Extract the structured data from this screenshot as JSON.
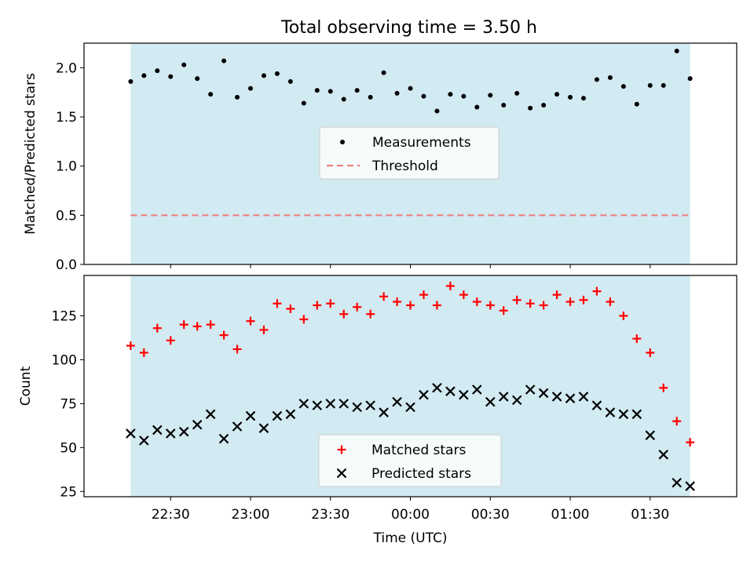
{
  "title": "Total observing time = 3.50 h",
  "colors": {
    "band": "#add8e6",
    "measurement": "#000000",
    "threshold": "#f08080",
    "matched": "#ff0000",
    "predicted": "#000000"
  },
  "chart_data": [
    {
      "type": "scatter",
      "ylabel": "Matched/Predicted stars",
      "ylim": [
        0,
        2.25
      ],
      "yticks": [
        "0.0",
        "0.5",
        "1.0",
        "1.5",
        "2.0"
      ],
      "legend_placement": "center",
      "observation_window": {
        "start": "22:15",
        "end": "01:45"
      },
      "series": [
        {
          "name": "Measurements",
          "marker": "dot",
          "x": [
            "22:15",
            "22:20",
            "22:25",
            "22:30",
            "22:35",
            "22:40",
            "22:45",
            "22:50",
            "22:55",
            "23:00",
            "23:05",
            "23:10",
            "23:15",
            "23:20",
            "23:25",
            "23:30",
            "23:35",
            "23:40",
            "23:45",
            "23:50",
            "23:55",
            "00:00",
            "00:05",
            "00:10",
            "00:15",
            "00:20",
            "00:25",
            "00:30",
            "00:35",
            "00:40",
            "00:45",
            "00:50",
            "00:55",
            "01:00",
            "01:05",
            "01:10",
            "01:15",
            "01:20",
            "01:25",
            "01:30",
            "01:35",
            "01:40",
            "01:45"
          ],
          "y": [
            1.86,
            1.92,
            1.97,
            1.91,
            2.03,
            1.89,
            1.73,
            2.07,
            1.7,
            1.79,
            1.92,
            1.94,
            1.86,
            1.64,
            1.77,
            1.76,
            1.68,
            1.77,
            1.7,
            1.95,
            1.74,
            1.79,
            1.71,
            1.56,
            1.73,
            1.71,
            1.6,
            1.72,
            1.62,
            1.74,
            1.59,
            1.62,
            1.73,
            1.7,
            1.69,
            1.88,
            1.9,
            1.81,
            1.63,
            1.82,
            1.82,
            2.17,
            1.89
          ]
        }
      ],
      "threshold": {
        "name": "Threshold",
        "value": 0.5,
        "style": "dashed"
      }
    },
    {
      "type": "scatter",
      "ylabel": "Count",
      "xlabel": "Time (UTC)",
      "ylim": [
        22,
        148
      ],
      "yticks": [
        "25",
        "50",
        "75",
        "100",
        "125"
      ],
      "xticks": [
        "22:30",
        "23:00",
        "23:30",
        "00:00",
        "00:30",
        "01:00",
        "01:30"
      ],
      "legend_placement": "lower center",
      "x": [
        "22:15",
        "22:20",
        "22:25",
        "22:30",
        "22:35",
        "22:40",
        "22:45",
        "22:50",
        "22:55",
        "23:00",
        "23:05",
        "23:10",
        "23:15",
        "23:20",
        "23:25",
        "23:30",
        "23:35",
        "23:40",
        "23:45",
        "23:50",
        "23:55",
        "00:00",
        "00:05",
        "00:10",
        "00:15",
        "00:20",
        "00:25",
        "00:30",
        "00:35",
        "00:40",
        "00:45",
        "00:50",
        "00:55",
        "01:00",
        "01:05",
        "01:10",
        "01:15",
        "01:20",
        "01:25",
        "01:30",
        "01:35",
        "01:40",
        "01:45"
      ],
      "series": [
        {
          "name": "Matched stars",
          "marker": "plus",
          "values": [
            108,
            104,
            118,
            111,
            120,
            119,
            120,
            114,
            106,
            122,
            117,
            132,
            129,
            123,
            131,
            132,
            126,
            130,
            126,
            136,
            133,
            131,
            137,
            131,
            142,
            137,
            133,
            131,
            128,
            134,
            132,
            131,
            137,
            133,
            134,
            139,
            133,
            125,
            112,
            104,
            84,
            65,
            53
          ]
        },
        {
          "name": "Predicted stars",
          "marker": "x",
          "values": [
            58,
            54,
            60,
            58,
            59,
            63,
            69,
            55,
            62,
            68,
            61,
            68,
            69,
            75,
            74,
            75,
            75,
            73,
            74,
            70,
            76,
            73,
            80,
            84,
            82,
            80,
            83,
            76,
            79,
            77,
            83,
            81,
            79,
            78,
            79,
            74,
            70,
            69,
            69,
            57,
            46,
            30,
            28
          ]
        }
      ]
    }
  ]
}
